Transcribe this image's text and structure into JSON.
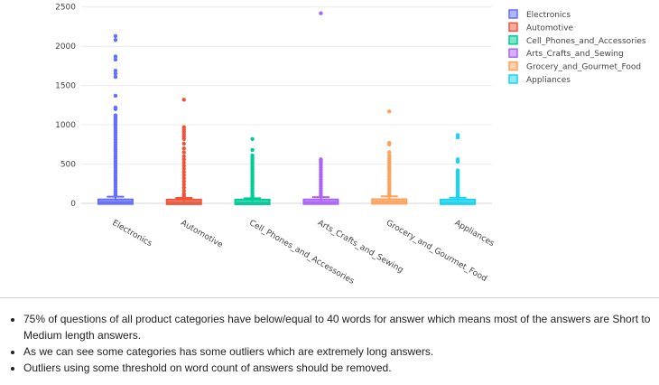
{
  "chart_data": {
    "type": "box",
    "title": "",
    "xlabel": "",
    "ylabel": "",
    "ylim": [
      -80,
      2520
    ],
    "y_ticks": [
      0,
      500,
      1000,
      1500,
      2000,
      2500
    ],
    "series": [
      {
        "name": "Electronics",
        "color": "#636efa",
        "q1": 8,
        "median": 18,
        "q3": 35,
        "whisker_high": 85,
        "outliers": [
          2130,
          2080,
          1870,
          1830,
          1690,
          1650,
          1610,
          1370,
          1220,
          1200,
          1120,
          1100,
          1080,
          1060,
          1040,
          1010,
          990,
          960,
          930,
          900,
          870,
          840,
          810,
          780,
          750,
          720,
          690,
          660,
          630,
          600,
          570,
          540,
          510,
          480,
          450,
          420,
          390,
          360,
          330,
          300,
          270,
          240,
          210,
          180,
          150,
          120,
          100
        ]
      },
      {
        "name": "Automotive",
        "color": "#ef553b",
        "q1": 8,
        "median": 16,
        "q3": 30,
        "whisker_high": 70,
        "outliers": [
          1320,
          970,
          940,
          910,
          880,
          850,
          820,
          760,
          700,
          650,
          600,
          560,
          520,
          480,
          440,
          400,
          360,
          320,
          280,
          240,
          200,
          160,
          120,
          90
        ]
      },
      {
        "name": "Cell_Phones_and_Accessories",
        "color": "#00cc96",
        "q1": 8,
        "median": 15,
        "q3": 28,
        "whisker_high": 65,
        "outliers": [
          820,
          680,
          610,
          580,
          550,
          520,
          490,
          460,
          430,
          400,
          370,
          340,
          310,
          280,
          250,
          220,
          190,
          160,
          130,
          100,
          80
        ]
      },
      {
        "name": "Arts_Crafts_and_Sewing",
        "color": "#ab63fa",
        "q1": 10,
        "median": 18,
        "q3": 32,
        "whisker_high": 80,
        "outliers": [
          2420,
          560,
          540,
          520,
          490,
          460,
          430,
          400,
          370,
          340,
          310,
          280,
          250,
          220,
          190,
          160,
          130,
          100
        ]
      },
      {
        "name": "Grocery_and_Gourmet_Food",
        "color": "#ffa15a",
        "q1": 10,
        "median": 20,
        "q3": 38,
        "whisker_high": 90,
        "outliers": [
          1170,
          770,
          750,
          650,
          610,
          580,
          550,
          520,
          490,
          460,
          430,
          400,
          370,
          340,
          310,
          280,
          250,
          220,
          190,
          160,
          130,
          105
        ]
      },
      {
        "name": "Appliances",
        "color": "#19d3f3",
        "q1": 8,
        "median": 16,
        "q3": 30,
        "whisker_high": 72,
        "outliers": [
          870,
          840,
          560,
          530,
          420,
          400,
          380,
          360,
          340,
          320,
          300,
          280,
          260,
          240,
          220,
          200,
          180,
          160,
          140,
          120,
          100,
          85
        ]
      }
    ],
    "legend_position": "top-right"
  },
  "notes": [
    "75% of questions of all product categories have below/equal to 40 words for answer which means most of the answers are Short to Medium length answers.",
    "As we can see some categories has some outliers which are extremely long answers.",
    "Outliers using some threshold on word count of answers should be removed."
  ]
}
